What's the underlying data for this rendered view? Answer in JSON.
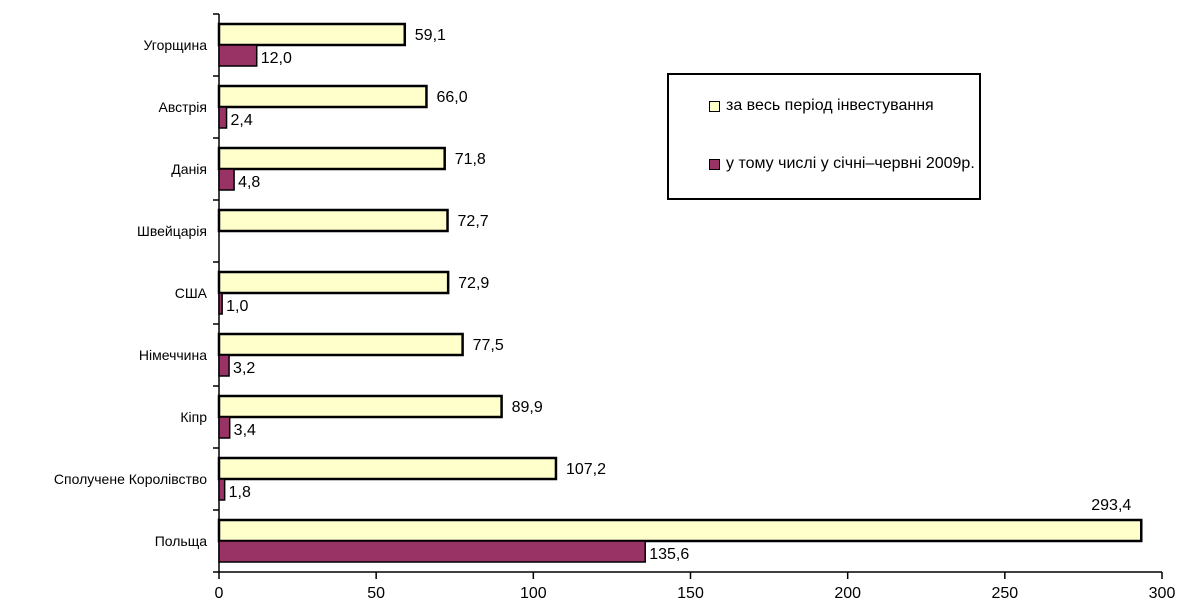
{
  "chart_data": {
    "type": "bar",
    "orientation": "horizontal",
    "categories": [
      "Угорщина",
      "Австрія",
      "Данія",
      "Швейцарія",
      "США",
      "Німеччина",
      "Кіпр",
      "Сполучене Королівство",
      "Польща"
    ],
    "series": [
      {
        "name": "за весь період інвестування",
        "color": "#FFFFCC",
        "values": [
          59.1,
          66.0,
          71.8,
          72.7,
          72.9,
          77.5,
          89.9,
          107.2,
          293.4
        ],
        "labels": [
          "59,1",
          "66,0",
          "71,8",
          "72,7",
          "72,9",
          "77,5",
          "89,9",
          "107,2",
          "293,4"
        ]
      },
      {
        "name": "у тому числі у січні–червні 2009р.",
        "color": "#993366",
        "values": [
          12.0,
          2.4,
          4.8,
          null,
          1.0,
          3.2,
          3.4,
          1.8,
          135.6
        ],
        "labels": [
          "12,0",
          "2,4",
          "4,8",
          "",
          "1,0",
          "3,2",
          "3,4",
          "1,8",
          "135,6"
        ]
      }
    ],
    "xlim": [
      0,
      300
    ],
    "xticks": [
      0,
      50,
      100,
      150,
      200,
      250,
      300
    ],
    "xtick_labels": [
      "0",
      "50",
      "100",
      "150",
      "200",
      "250",
      "300"
    ],
    "grid": false,
    "legend_position": "top-right"
  }
}
